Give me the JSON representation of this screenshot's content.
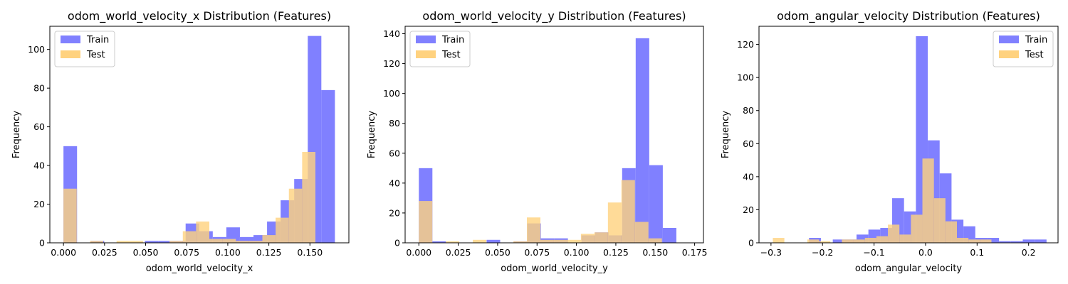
{
  "colors": {
    "train": "#8080ff",
    "test": "#ffd27f",
    "overlap": "#bf917f"
  },
  "chart_data": [
    {
      "type": "bar",
      "title": "odom_world_velocity_x Distribution (Features)",
      "xlabel": "odom_world_velocity_x",
      "ylabel": "Frequency",
      "xlim": [
        -0.0083,
        0.1737
      ],
      "ylim": [
        0,
        112
      ],
      "xticks": [
        0.0,
        0.025,
        0.05,
        0.075,
        0.1,
        0.125,
        0.15
      ],
      "xtick_labels": [
        "0.000",
        "0.025",
        "0.050",
        "0.075",
        "0.100",
        "0.125",
        "0.150"
      ],
      "yticks": [
        0,
        20,
        40,
        60,
        80,
        100
      ],
      "legend": {
        "position": "top-left",
        "entries": [
          "Train",
          "Test"
        ]
      },
      "series": [
        {
          "name": "Train",
          "bin_start": 0.0,
          "bin_width": 0.00826,
          "values": [
            50,
            0,
            1,
            0,
            0,
            0,
            1,
            1,
            1,
            10,
            6,
            3,
            8,
            3,
            4,
            11,
            22,
            33,
            107,
            79
          ]
        },
        {
          "name": "Test",
          "bin_start": 0.0,
          "bin_width": 0.00807,
          "values": [
            28,
            0,
            1,
            0,
            1,
            1,
            0,
            0,
            1,
            6,
            11,
            2,
            2,
            1,
            1,
            4,
            13,
            28,
            47,
            0
          ]
        }
      ]
    },
    {
      "type": "bar",
      "title": "odom_world_velocity_y Distribution (Features)",
      "xlabel": "odom_world_velocity_y",
      "ylabel": "Frequency",
      "xlim": [
        -0.0087,
        0.1806
      ],
      "ylim": [
        0,
        145
      ],
      "xticks": [
        0.0,
        0.025,
        0.05,
        0.075,
        0.1,
        0.125,
        0.15,
        0.175
      ],
      "xtick_labels": [
        "0.000",
        "0.025",
        "0.050",
        "0.075",
        "0.100",
        "0.125",
        "0.150",
        "0.175"
      ],
      "yticks": [
        0,
        20,
        40,
        60,
        80,
        100,
        120,
        140
      ],
      "legend": {
        "position": "top-left",
        "entries": [
          "Train",
          "Test"
        ]
      },
      "series": [
        {
          "name": "Train",
          "bin_start": 0.0,
          "bin_width": 0.0086,
          "values": [
            50,
            1,
            0,
            0,
            0,
            2,
            0,
            1,
            13,
            3,
            3,
            0,
            5,
            7,
            5,
            50,
            137,
            52,
            10,
            0
          ]
        },
        {
          "name": "Test",
          "bin_start": 0.0,
          "bin_width": 0.00857,
          "values": [
            28,
            0,
            1,
            0,
            2,
            0,
            0,
            1,
            17,
            2,
            2,
            2,
            6,
            7,
            27,
            42,
            14,
            3,
            0,
            0
          ]
        }
      ]
    },
    {
      "type": "bar",
      "title": "odom_angular_velocity Distribution (Features)",
      "xlabel": "odom_angular_velocity",
      "ylabel": "Frequency",
      "xlim": [
        -0.3233,
        0.2571
      ],
      "ylim": [
        0,
        131
      ],
      "xticks": [
        -0.3,
        -0.2,
        -0.1,
        0.0,
        0.1,
        0.2
      ],
      "xtick_labels": [
        "−0.3",
        "−0.2",
        "−0.1",
        "0.0",
        "0.1",
        "0.2"
      ],
      "yticks": [
        0,
        20,
        40,
        60,
        80,
        100,
        120
      ],
      "legend": {
        "position": "top-right",
        "entries": [
          "Train",
          "Test"
        ]
      },
      "series": [
        {
          "name": "Train",
          "bin_start": -0.2262,
          "bin_width": 0.02305,
          "values": [
            3,
            0,
            2,
            2,
            5,
            8,
            9,
            27,
            19,
            125,
            62,
            42,
            14,
            10,
            3,
            3,
            1,
            1,
            2,
            2
          ]
        },
        {
          "name": "Test",
          "bin_start": -0.2964,
          "bin_width": 0.02233,
          "values": [
            3,
            0,
            0,
            2,
            1,
            0,
            2,
            2,
            3,
            4,
            11,
            5,
            17,
            51,
            27,
            13,
            3,
            2,
            2,
            0
          ]
        }
      ]
    }
  ]
}
